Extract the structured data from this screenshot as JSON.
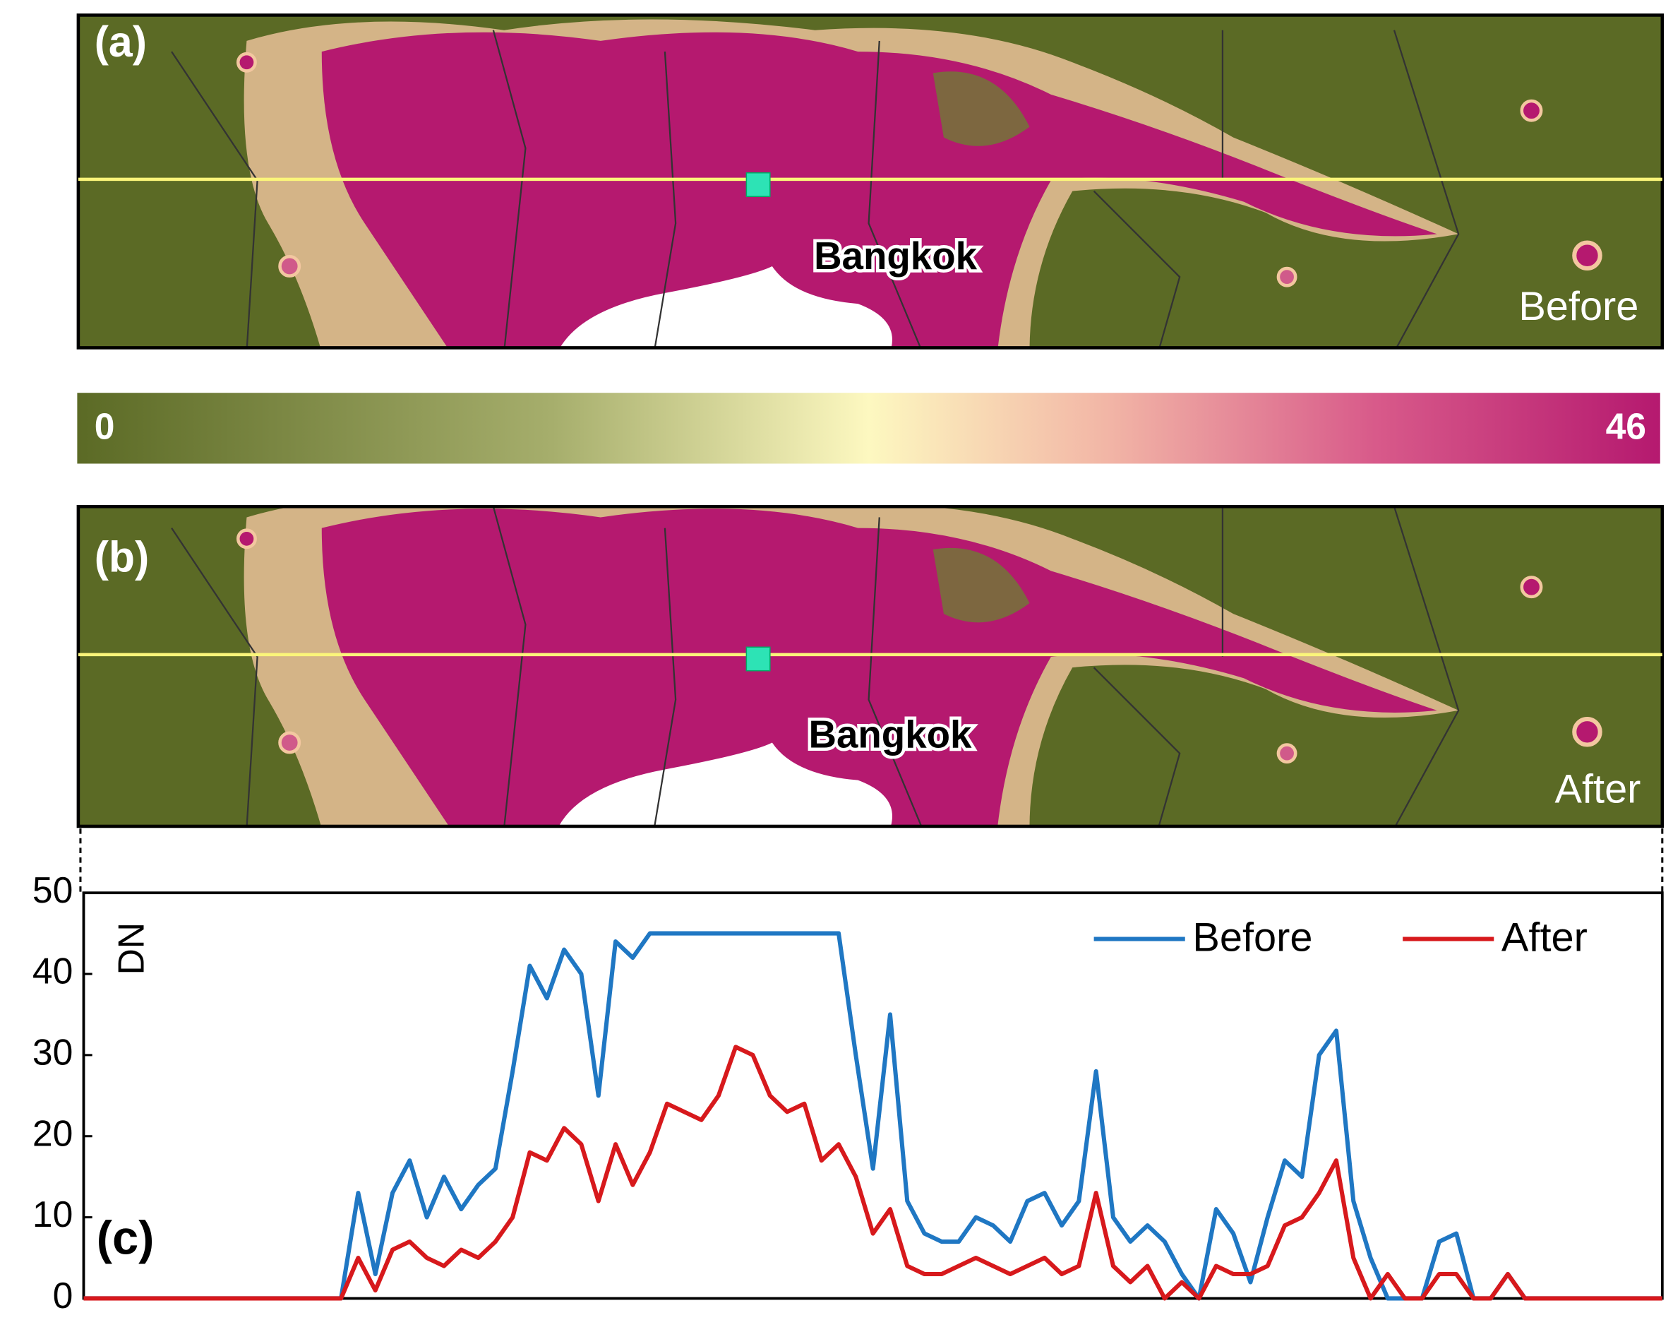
{
  "maps": [
    {
      "label": "(a)",
      "city": "Bangkok",
      "state": "Before"
    },
    {
      "label": "(b)",
      "city": "Bangkok",
      "state": "After"
    }
  ],
  "colorbar": {
    "min": 0,
    "max": 46
  },
  "chart_data": {
    "type": "line",
    "label": "(c)",
    "ylabel": "DN",
    "categories": [
      null,
      null,
      null,
      null,
      null,
      null,
      null,
      null,
      null,
      null,
      null,
      null,
      null,
      null,
      null,
      null,
      null,
      null,
      null,
      null,
      null,
      null,
      null,
      null,
      null,
      null,
      null,
      null,
      null,
      null,
      null,
      null,
      null,
      null,
      null,
      null,
      null,
      null,
      null,
      null,
      null,
      null,
      null,
      null,
      null,
      null,
      null,
      null,
      null,
      null,
      null,
      null,
      null,
      null,
      null,
      null,
      null,
      null,
      null,
      null,
      null,
      null,
      null,
      null,
      null,
      null,
      null,
      null,
      null,
      null,
      null,
      null,
      null,
      null,
      null,
      null,
      null,
      null,
      null,
      null,
      null,
      null,
      null,
      null,
      null,
      null,
      null,
      null,
      null,
      null,
      null,
      null,
      null
    ],
    "series": [
      {
        "name": "Before",
        "color": "#1f77c3",
        "values": [
          0,
          0,
          0,
          0,
          0,
          0,
          0,
          0,
          0,
          0,
          0,
          0,
          0,
          0,
          0,
          0,
          13,
          3,
          13,
          17,
          10,
          15,
          11,
          14,
          16,
          28,
          41,
          37,
          43,
          40,
          25,
          44,
          42,
          45,
          45,
          45,
          45,
          45,
          45,
          45,
          45,
          45,
          45,
          45,
          45,
          30,
          16,
          35,
          12,
          8,
          7,
          7,
          10,
          9,
          7,
          12,
          13,
          9,
          12,
          28,
          10,
          7,
          9,
          7,
          3,
          0,
          11,
          8,
          2,
          10,
          17,
          15,
          30,
          33,
          12,
          5,
          0,
          0,
          0,
          7,
          8,
          0,
          0,
          3,
          0,
          0,
          0,
          0,
          0,
          0,
          0,
          0,
          0
        ]
      },
      {
        "name": "After",
        "color": "#d7191c",
        "values": [
          0,
          0,
          0,
          0,
          0,
          0,
          0,
          0,
          0,
          0,
          0,
          0,
          0,
          0,
          0,
          0,
          5,
          1,
          6,
          7,
          5,
          4,
          6,
          5,
          7,
          10,
          18,
          17,
          21,
          19,
          12,
          19,
          14,
          18,
          24,
          23,
          22,
          25,
          31,
          30,
          25,
          23,
          24,
          17,
          19,
          15,
          8,
          11,
          4,
          3,
          3,
          4,
          5,
          4,
          3,
          4,
          5,
          3,
          4,
          13,
          4,
          2,
          4,
          0,
          2,
          0,
          4,
          3,
          3,
          4,
          9,
          10,
          13,
          17,
          5,
          0,
          3,
          0,
          0,
          3,
          3,
          0,
          0,
          3,
          0,
          0,
          0,
          0,
          0,
          0,
          0,
          0,
          0
        ]
      }
    ],
    "ylim": [
      0,
      50
    ],
    "yticks": [
      0,
      10,
      20,
      30,
      40,
      50
    ],
    "grid": false,
    "legend": "upper right"
  }
}
